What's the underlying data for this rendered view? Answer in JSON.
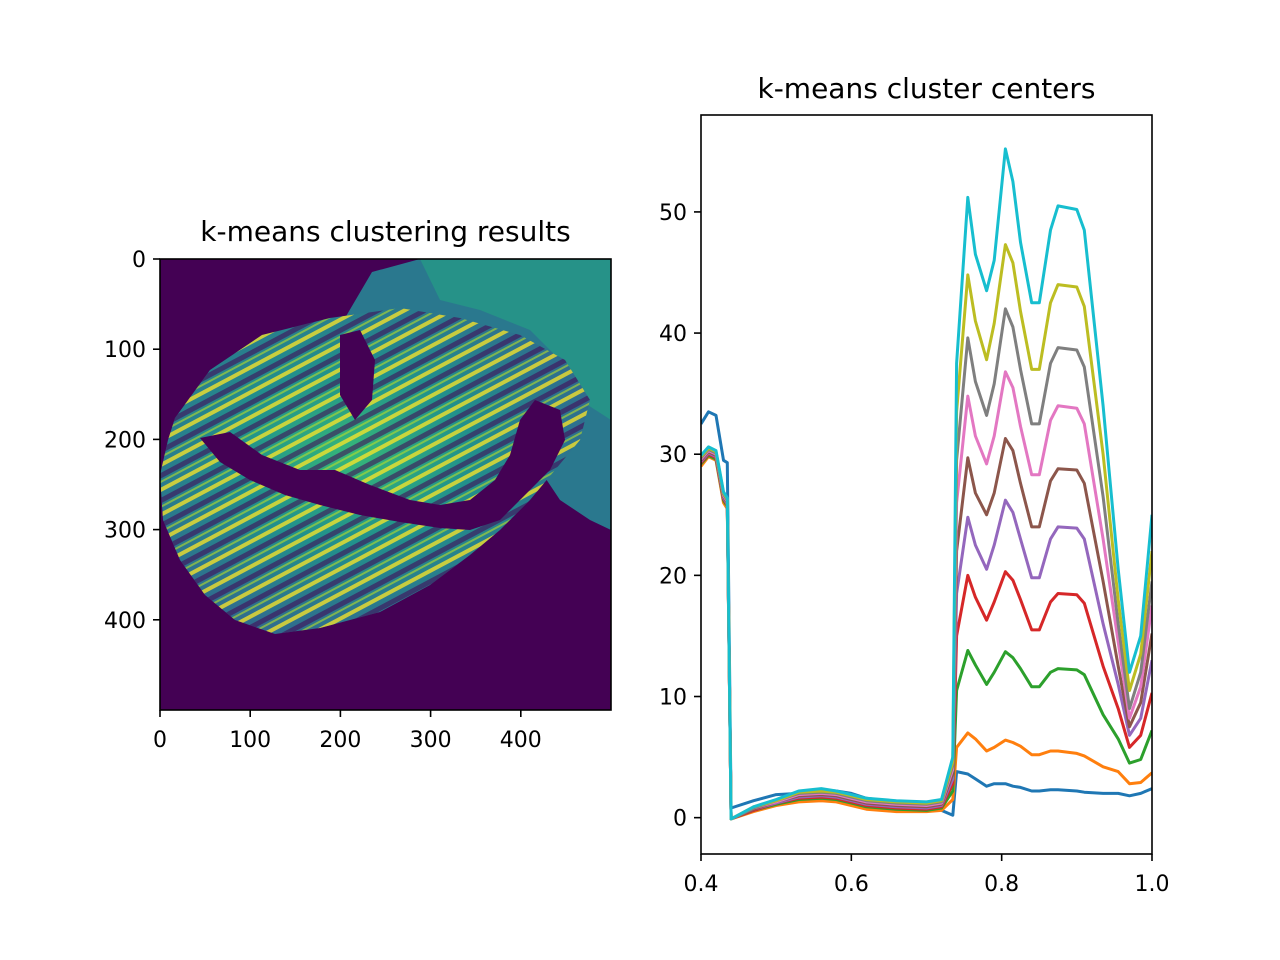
{
  "chart_data": [
    {
      "type": "heatmap",
      "title": "k-means clustering results",
      "colormap": "viridis",
      "xlim": [
        0,
        500
      ],
      "ylim": [
        500,
        0
      ],
      "xticks": [
        0,
        100,
        200,
        300,
        400
      ],
      "yticks": [
        0,
        100,
        200,
        300,
        400
      ],
      "background_color": "#440154",
      "grid": false
    },
    {
      "type": "line",
      "title": "k-means cluster centers",
      "xlabel": "",
      "ylabel": "",
      "xlim": [
        0.4,
        1.0
      ],
      "ylim": [
        -3,
        58
      ],
      "xticks": [
        0.4,
        0.6,
        0.8,
        1.0
      ],
      "xtick_labels": [
        "0.4",
        "0.6",
        "0.8",
        "1.0"
      ],
      "yticks": [
        0,
        10,
        20,
        30,
        40,
        50
      ],
      "grid": false,
      "x": [
        0.4,
        0.41,
        0.42,
        0.43,
        0.435,
        0.44,
        0.47,
        0.5,
        0.53,
        0.56,
        0.58,
        0.6,
        0.62,
        0.66,
        0.7,
        0.72,
        0.735,
        0.74,
        0.755,
        0.765,
        0.78,
        0.79,
        0.805,
        0.815,
        0.825,
        0.84,
        0.85,
        0.865,
        0.875,
        0.9,
        0.91,
        0.935,
        0.955,
        0.97,
        0.985,
        1.0
      ],
      "series": [
        {
          "color": "#1f77b4",
          "values": [
            32.5,
            33.5,
            33.2,
            29.5,
            29.3,
            0.8,
            1.4,
            1.9,
            2.0,
            2.3,
            2.2,
            2.0,
            1.6,
            1.3,
            1.0,
            0.6,
            0.2,
            3.8,
            3.6,
            3.2,
            2.6,
            2.8,
            2.8,
            2.6,
            2.5,
            2.2,
            2.2,
            2.3,
            2.3,
            2.2,
            2.1,
            2.0,
            2.0,
            1.8,
            2.0,
            2.4
          ]
        },
        {
          "color": "#ff7f0e",
          "values": [
            29.0,
            29.8,
            29.5,
            26.0,
            25.5,
            -0.1,
            0.5,
            1.0,
            1.3,
            1.4,
            1.3,
            1.0,
            0.7,
            0.5,
            0.5,
            0.6,
            1.5,
            5.8,
            7.0,
            6.5,
            5.5,
            5.8,
            6.4,
            6.2,
            5.9,
            5.2,
            5.2,
            5.5,
            5.5,
            5.3,
            5.1,
            4.2,
            3.8,
            2.8,
            2.9,
            3.7
          ]
        },
        {
          "color": "#2ca02c",
          "values": [
            29.2,
            29.9,
            29.6,
            26.2,
            25.7,
            -0.1,
            0.6,
            1.1,
            1.5,
            1.6,
            1.5,
            1.2,
            0.9,
            0.7,
            0.6,
            0.8,
            2.2,
            10.5,
            13.8,
            12.6,
            11.0,
            12.0,
            13.7,
            13.2,
            12.3,
            10.8,
            10.8,
            12.0,
            12.3,
            12.2,
            11.8,
            8.5,
            6.5,
            4.5,
            4.8,
            7.2
          ]
        },
        {
          "color": "#d62728",
          "values": [
            29.3,
            30.0,
            29.7,
            26.3,
            25.8,
            -0.1,
            0.6,
            1.2,
            1.6,
            1.7,
            1.6,
            1.3,
            1.0,
            0.8,
            0.7,
            0.9,
            2.8,
            15.0,
            20.0,
            18.2,
            16.3,
            17.8,
            20.3,
            19.6,
            18.0,
            15.5,
            15.5,
            17.8,
            18.5,
            18.4,
            17.7,
            12.5,
            9.0,
            5.8,
            6.8,
            10.3
          ]
        },
        {
          "color": "#9467bd",
          "values": [
            29.4,
            30.1,
            29.8,
            26.4,
            25.9,
            -0.1,
            0.7,
            1.2,
            1.7,
            1.8,
            1.7,
            1.4,
            1.1,
            0.9,
            0.8,
            1.0,
            3.2,
            18.5,
            24.8,
            22.5,
            20.5,
            22.5,
            26.2,
            25.2,
            23.0,
            19.8,
            19.8,
            23.0,
            24.0,
            23.9,
            23.0,
            16.0,
            11.0,
            6.8,
            8.2,
            13.0
          ]
        },
        {
          "color": "#8c564b",
          "values": [
            29.5,
            30.2,
            29.9,
            26.5,
            26.0,
            -0.1,
            0.7,
            1.3,
            1.8,
            1.9,
            1.8,
            1.5,
            1.2,
            1.0,
            0.9,
            1.1,
            3.6,
            22.0,
            29.7,
            26.8,
            25.0,
            26.8,
            31.3,
            30.3,
            27.6,
            24.0,
            24.0,
            27.8,
            28.8,
            28.7,
            27.6,
            19.5,
            12.5,
            7.5,
            9.5,
            15.2
          ]
        },
        {
          "color": "#e377c2",
          "values": [
            29.6,
            30.3,
            30.0,
            26.6,
            26.1,
            -0.1,
            0.8,
            1.3,
            1.9,
            2.0,
            1.9,
            1.6,
            1.3,
            1.1,
            1.0,
            1.2,
            4.0,
            26.0,
            34.8,
            31.5,
            29.2,
            31.5,
            36.8,
            35.5,
            32.3,
            28.3,
            28.3,
            32.8,
            34.0,
            33.8,
            32.5,
            23.0,
            14.5,
            8.2,
            10.8,
            17.5
          ]
        },
        {
          "color": "#7f7f7f",
          "values": [
            29.7,
            30.4,
            30.1,
            26.7,
            26.2,
            -0.1,
            0.8,
            1.4,
            2.0,
            2.1,
            2.0,
            1.7,
            1.4,
            1.2,
            1.1,
            1.3,
            4.3,
            29.5,
            39.6,
            36.0,
            33.2,
            35.8,
            42.0,
            40.5,
            37.0,
            32.5,
            32.5,
            37.5,
            38.8,
            38.6,
            37.2,
            26.5,
            16.0,
            9.0,
            12.0,
            19.5
          ]
        },
        {
          "color": "#bcbd22",
          "values": [
            29.8,
            30.5,
            30.2,
            26.8,
            26.3,
            -0.1,
            0.9,
            1.4,
            2.1,
            2.2,
            2.1,
            1.8,
            1.5,
            1.3,
            1.2,
            1.4,
            4.6,
            33.5,
            44.8,
            41.0,
            37.8,
            40.8,
            47.3,
            45.8,
            41.8,
            37.0,
            37.0,
            42.5,
            44.0,
            43.8,
            42.2,
            30.0,
            18.0,
            10.5,
            13.5,
            22.0
          ]
        },
        {
          "color": "#17becf",
          "values": [
            29.9,
            30.6,
            30.3,
            26.9,
            26.4,
            -0.1,
            0.9,
            1.5,
            2.2,
            2.4,
            2.2,
            1.9,
            1.6,
            1.4,
            1.3,
            1.5,
            5.0,
            37.5,
            51.2,
            46.5,
            43.5,
            46.0,
            55.2,
            52.5,
            47.5,
            42.5,
            42.5,
            48.5,
            50.5,
            50.2,
            48.5,
            34.0,
            20.5,
            12.0,
            15.0,
            25.0
          ]
        }
      ]
    }
  ]
}
